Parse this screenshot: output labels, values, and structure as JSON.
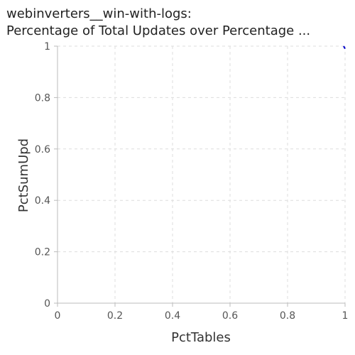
{
  "chart_data": {
    "type": "line",
    "title_lines": [
      "webinverters__win-with-logs:",
      "Percentage of Total Updates over Percentage ..."
    ],
    "xlabel": "PctTables",
    "ylabel": "PctSumUpd",
    "xlim": [
      0,
      1
    ],
    "ylim": [
      0,
      1
    ],
    "xticks": [
      0,
      0.2,
      0.4,
      0.6,
      0.8,
      1
    ],
    "yticks": [
      0,
      0.2,
      0.4,
      0.6,
      0.8,
      1
    ],
    "xtick_labels": [
      "0",
      "0.2",
      "0.4",
      "0.6",
      "0.8",
      "1"
    ],
    "ytick_labels": [
      "0",
      "0.2",
      "0.4",
      "0.6",
      "0.8",
      "1"
    ],
    "grid": true,
    "series": [
      {
        "color": "#0000cc",
        "x": [
          0.995,
          1.0
        ],
        "y": [
          1.0,
          0.99
        ]
      }
    ]
  }
}
